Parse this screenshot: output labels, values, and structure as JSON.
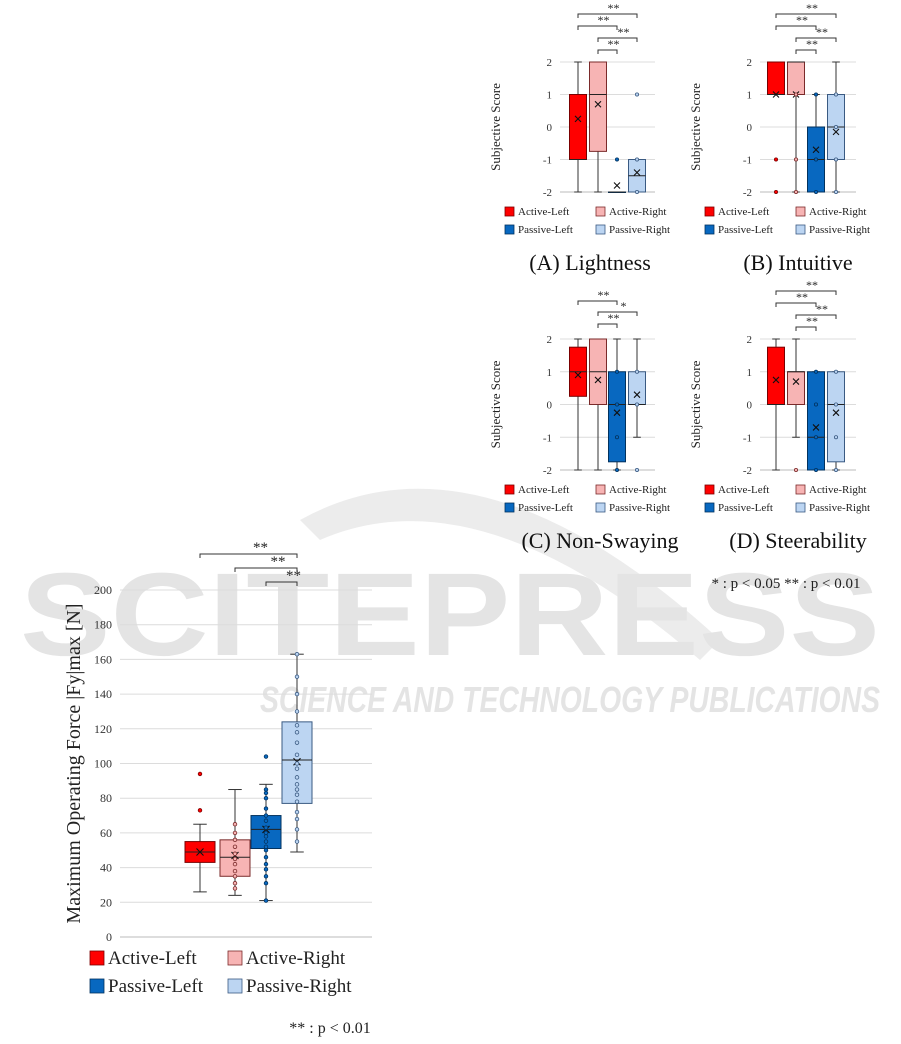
{
  "colors": {
    "active_left": "#ff0000",
    "active_right": "#f7b4b4",
    "passive_left": "#0868c0",
    "passive_right": "#bcd5f2",
    "watermark": "#e2e2e2",
    "grid": "#dcdcdc"
  },
  "watermark": {
    "big": "SCITEPRESS",
    "sub": "SCIENCE AND TECHNOLOGY PUBLICATIONS"
  },
  "legend_labels": [
    "Active-Left",
    "Active-Right",
    "Passive-Left",
    "Passive-Right"
  ],
  "significance_notes": {
    "subjective": "* : p < 0.05     ** : p < 0.01",
    "force": "** : p < 0.01"
  },
  "chart_data": [
    {
      "type": "box",
      "caption": "(A) Lightness",
      "ylabel": "Subjective Score",
      "ylim": [
        -2,
        2
      ],
      "yticks": [
        -2,
        -1,
        0,
        1,
        2
      ],
      "groups": [
        {
          "name": "Active-Left",
          "min": -2,
          "q1": -1,
          "median": -1,
          "q3": 1,
          "max": 2,
          "mean": 0.25,
          "points": []
        },
        {
          "name": "Active-Right",
          "min": -2,
          "q1": -0.75,
          "median": 1,
          "q3": 2,
          "max": 2,
          "mean": 0.7,
          "points": []
        },
        {
          "name": "Passive-Left",
          "min": -2,
          "q1": -2,
          "median": -2,
          "q3": -2,
          "max": -2,
          "mean": -1.8,
          "points": [
            -1
          ]
        },
        {
          "name": "Passive-Right",
          "min": -2,
          "q1": -2,
          "median": -1.5,
          "q3": -1,
          "max": -1,
          "mean": -1.4,
          "points": [
            1,
            -1,
            -2
          ]
        }
      ],
      "brackets": [
        {
          "from": 0,
          "to": 3,
          "label": "**"
        },
        {
          "from": 0,
          "to": 2,
          "label": "**"
        },
        {
          "from": 1,
          "to": 3,
          "label": "**"
        },
        {
          "from": 1,
          "to": 2,
          "label": "**"
        }
      ]
    },
    {
      "type": "box",
      "caption": "(B) Intuitive",
      "ylabel": "Subjective Score",
      "ylim": [
        -2,
        2
      ],
      "yticks": [
        -2,
        -1,
        0,
        1,
        2
      ],
      "groups": [
        {
          "name": "Active-Left",
          "min": 1,
          "q1": 1,
          "median": 1,
          "q3": 2,
          "max": 2,
          "mean": 1.0,
          "points": [
            -1,
            -2
          ]
        },
        {
          "name": "Active-Right",
          "min": -2,
          "q1": 1,
          "median": 2,
          "q3": 2,
          "max": 2,
          "mean": 1.0,
          "points": [
            -1,
            1,
            -2
          ]
        },
        {
          "name": "Passive-Left",
          "min": -2,
          "q1": -2,
          "median": -1,
          "q3": 0,
          "max": 1,
          "mean": -0.7,
          "points": [
            1,
            -1,
            -2
          ]
        },
        {
          "name": "Passive-Right",
          "min": -2,
          "q1": -1,
          "median": 0,
          "q3": 1,
          "max": 2,
          "mean": -0.15,
          "points": [
            1,
            0,
            -1,
            -2
          ]
        }
      ],
      "brackets": [
        {
          "from": 0,
          "to": 3,
          "label": "**"
        },
        {
          "from": 0,
          "to": 2,
          "label": "**"
        },
        {
          "from": 1,
          "to": 3,
          "label": "**"
        },
        {
          "from": 1,
          "to": 2,
          "label": "**"
        }
      ]
    },
    {
      "type": "box",
      "caption": "(C) Non-Swaying",
      "ylabel": "Subjective Score",
      "ylim": [
        -2,
        2
      ],
      "yticks": [
        -2,
        -1,
        0,
        1,
        2
      ],
      "groups": [
        {
          "name": "Active-Left",
          "min": -2,
          "q1": 0.25,
          "median": 1,
          "q3": 1.75,
          "max": 2,
          "mean": 0.9,
          "points": []
        },
        {
          "name": "Active-Right",
          "min": -2,
          "q1": 0,
          "median": 1,
          "q3": 2,
          "max": 2,
          "mean": 0.75,
          "points": []
        },
        {
          "name": "Passive-Left",
          "min": -2,
          "q1": -1.75,
          "median": 0,
          "q3": 1,
          "max": 2,
          "mean": -0.25,
          "points": [
            1,
            0,
            -1,
            -2
          ]
        },
        {
          "name": "Passive-Right",
          "min": -1,
          "q1": 0,
          "median": 0,
          "q3": 1,
          "max": 2,
          "mean": 0.3,
          "points": [
            1,
            0,
            -2
          ]
        }
      ],
      "brackets": [
        {
          "from": 0,
          "to": 2,
          "label": "**"
        },
        {
          "from": 1,
          "to": 3,
          "label": "*"
        },
        {
          "from": 1,
          "to": 2,
          "label": "**"
        }
      ]
    },
    {
      "type": "box",
      "caption": "(D) Steerability",
      "ylabel": "Subjective Score",
      "ylim": [
        -2,
        2
      ],
      "yticks": [
        -2,
        -1,
        0,
        1,
        2
      ],
      "groups": [
        {
          "name": "Active-Left",
          "min": -2,
          "q1": 0,
          "median": 0,
          "q3": 1.75,
          "max": 2,
          "mean": 0.75,
          "points": []
        },
        {
          "name": "Active-Right",
          "min": -1,
          "q1": 0,
          "median": 1,
          "q3": 1,
          "max": 2,
          "mean": 0.7,
          "points": [
            -2
          ]
        },
        {
          "name": "Passive-Left",
          "min": -2,
          "q1": -2,
          "median": -1,
          "q3": 1,
          "max": 1,
          "mean": -0.7,
          "points": [
            1,
            0,
            -1,
            -2
          ]
        },
        {
          "name": "Passive-Right",
          "min": -2,
          "q1": -1.75,
          "median": 0,
          "q3": 1,
          "max": 1,
          "mean": -0.25,
          "points": [
            1,
            0,
            -1,
            -2
          ]
        }
      ],
      "brackets": [
        {
          "from": 0,
          "to": 3,
          "label": "**"
        },
        {
          "from": 0,
          "to": 2,
          "label": "**"
        },
        {
          "from": 1,
          "to": 3,
          "label": "**"
        },
        {
          "from": 1,
          "to": 2,
          "label": "**"
        }
      ]
    },
    {
      "type": "box",
      "caption": "",
      "ylabel": "Maximum Operating Force |Fy|max [N]",
      "ylim": [
        0,
        200
      ],
      "yticks": [
        0,
        20,
        40,
        60,
        80,
        100,
        120,
        140,
        160,
        180,
        200
      ],
      "groups": [
        {
          "name": "Active-Left",
          "min": 26,
          "q1": 43,
          "median": 49,
          "q3": 55,
          "max": 65,
          "mean": 49,
          "points": [
            94,
            73
          ]
        },
        {
          "name": "Active-Right",
          "min": 24,
          "q1": 35,
          "median": 46,
          "q3": 56,
          "max": 85,
          "mean": 47,
          "points": [
            65,
            60,
            56,
            52,
            48,
            45,
            42,
            38,
            35,
            31,
            28
          ]
        },
        {
          "name": "Passive-Left",
          "min": 21,
          "q1": 51,
          "median": 62,
          "q3": 70,
          "max": 88,
          "mean": 62,
          "points": [
            104,
            85,
            83,
            80,
            74,
            70,
            67,
            63,
            60,
            58,
            55,
            52,
            50,
            46,
            42,
            39,
            35,
            31,
            21
          ]
        },
        {
          "name": "Passive-Right",
          "min": 49,
          "q1": 77,
          "median": 102,
          "q3": 124,
          "max": 163,
          "mean": 101,
          "points": [
            163,
            150,
            140,
            130,
            122,
            118,
            112,
            105,
            100,
            97,
            92,
            88,
            85,
            82,
            78,
            72,
            68,
            62,
            55
          ]
        }
      ],
      "brackets": [
        {
          "from": 0,
          "to": 3,
          "label": "**"
        },
        {
          "from": 1,
          "to": 3,
          "label": "**"
        },
        {
          "from": 2,
          "to": 3,
          "label": "**"
        }
      ]
    }
  ]
}
